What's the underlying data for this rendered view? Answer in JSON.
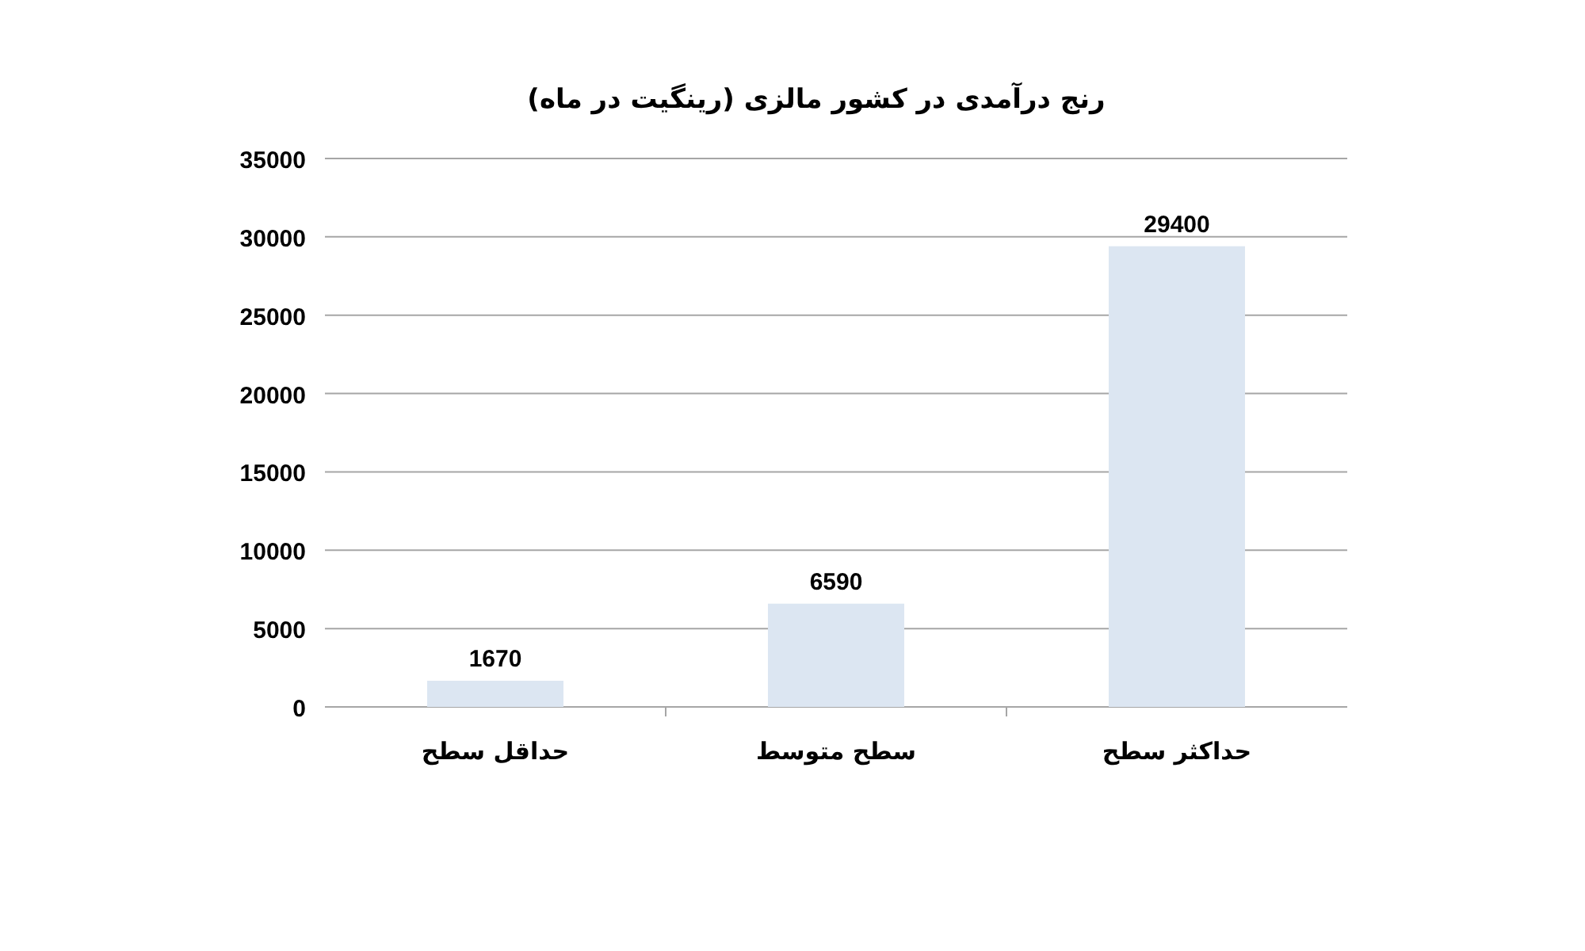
{
  "chart_data": {
    "type": "bar",
    "title": "رنج درآمدی در کشور مالزی (رینگیت در ماه)",
    "categories": [
      "حداقل سطح",
      "سطح متوسط",
      "حداکثر سطح"
    ],
    "values": [
      1670,
      6590,
      29400
    ],
    "color": "#dce6f2",
    "ylim": [
      0,
      35000
    ],
    "yticks": [
      0,
      5000,
      10000,
      15000,
      20000,
      25000,
      30000,
      35000
    ],
    "grid": "y",
    "data_labels": true
  }
}
